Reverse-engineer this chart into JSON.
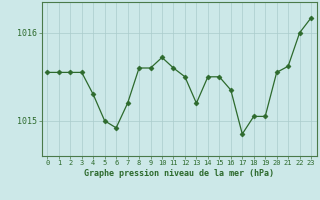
{
  "x": [
    0,
    1,
    2,
    3,
    4,
    5,
    6,
    7,
    8,
    9,
    10,
    11,
    12,
    13,
    14,
    15,
    16,
    17,
    18,
    19,
    20,
    21,
    22,
    23
  ],
  "y": [
    1015.55,
    1015.55,
    1015.55,
    1015.55,
    1015.3,
    1015.0,
    1014.92,
    1015.2,
    1015.6,
    1015.6,
    1015.72,
    1015.6,
    1015.5,
    1015.2,
    1015.5,
    1015.5,
    1015.35,
    1014.85,
    1015.05,
    1015.05,
    1015.55,
    1015.62,
    1016.0,
    1016.17
  ],
  "line_color": "#2d6a2d",
  "marker": "D",
  "marker_size": 2.5,
  "background_color": "#cce8e8",
  "grid_color_major": "#aacccc",
  "grid_color_minor": "#c0dada",
  "text_color": "#2d6a2d",
  "xlabel": "Graphe pression niveau de la mer (hPa)",
  "ylim": [
    1014.6,
    1016.35
  ],
  "yticks": [
    1015,
    1016
  ],
  "xlim": [
    -0.5,
    23.5
  ]
}
